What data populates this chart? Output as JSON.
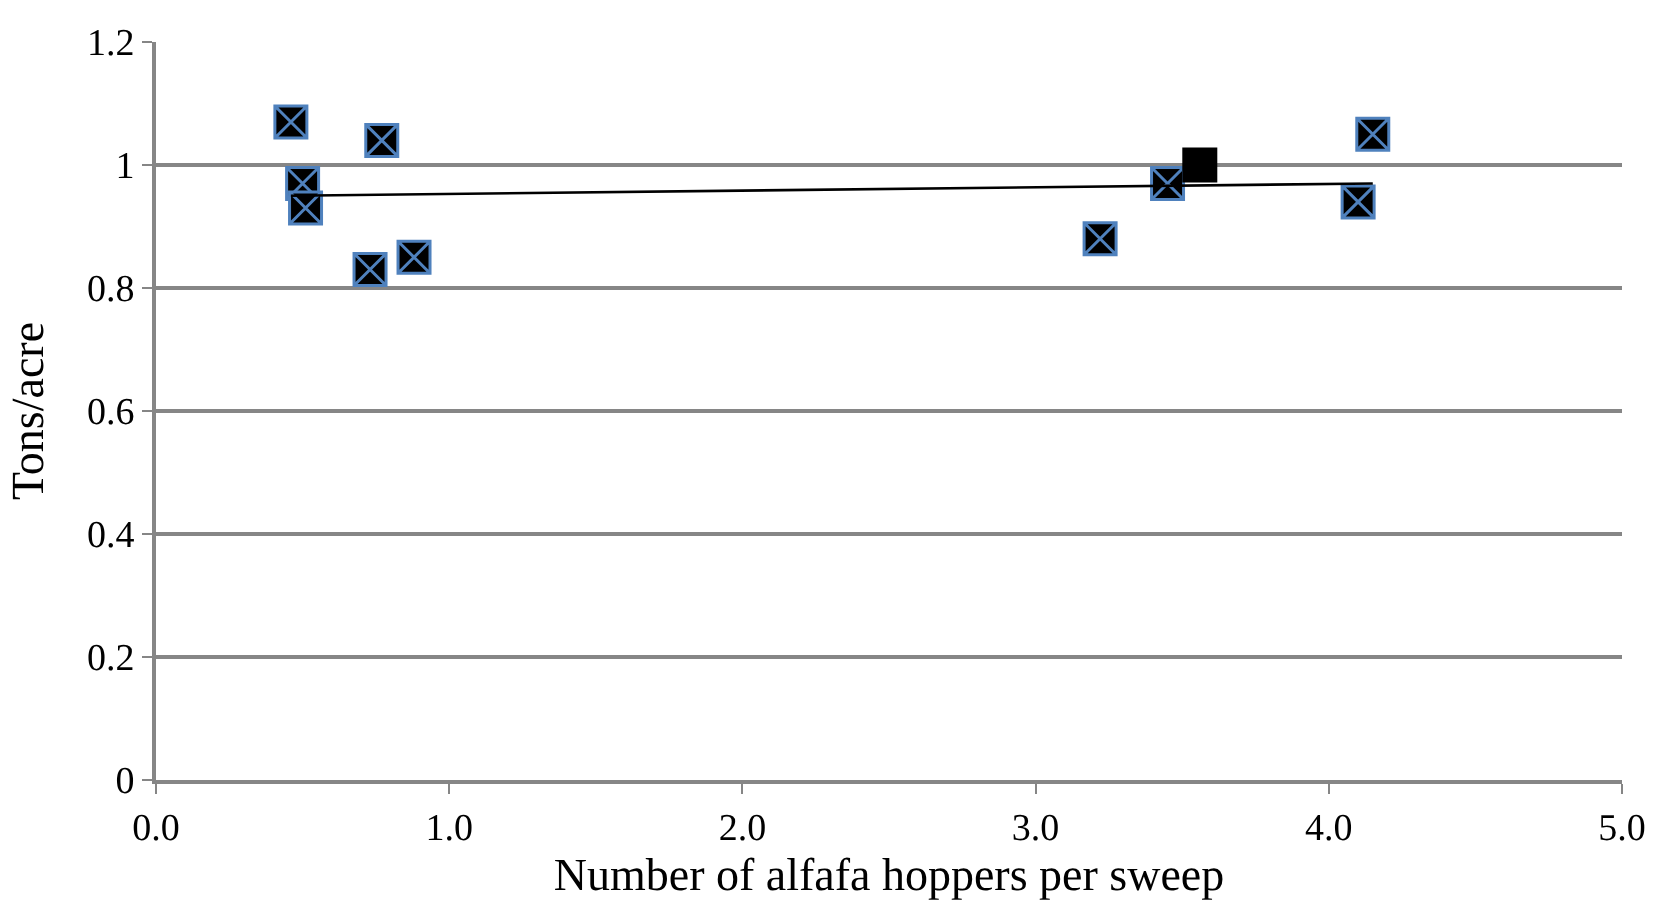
{
  "chart_data": {
    "type": "scatter",
    "xlabel": "Number of alfafa hoppers per sweep",
    "ylabel": "Tons/acre",
    "xlim": [
      0,
      5
    ],
    "xticks": [
      {
        "value": 0,
        "label": "0.0"
      },
      {
        "value": 1,
        "label": "1.0"
      },
      {
        "value": 2,
        "label": "2.0"
      },
      {
        "value": 3,
        "label": "3.0"
      },
      {
        "value": 4,
        "label": "4.0"
      },
      {
        "value": 5,
        "label": "5.0"
      }
    ],
    "ylim": [
      0,
      1.2
    ],
    "yticks": [
      0,
      0.2,
      0.4,
      0.6,
      0.8,
      1,
      1.2
    ],
    "grid": "y",
    "series": [
      {
        "color": "#000000",
        "marker": "cross",
        "x": [
          0.46,
          0.77,
          0.5,
          0.51,
          0.73,
          0.88,
          3.22,
          3.45,
          4.1,
          4.15
        ],
        "values": [
          1.07,
          1.04,
          0.97,
          0.93,
          0.83,
          0.85,
          0.88,
          0.97,
          0.94,
          1.05
        ]
      },
      {
        "color": "#000000",
        "marker": "square",
        "x": [
          3.56
        ],
        "values": [
          1.0
        ]
      },
      {
        "type": "line",
        "color": "#000000",
        "marker": "none",
        "x": [
          0.46,
          4.15
        ],
        "values": [
          0.95,
          0.97
        ]
      }
    ]
  }
}
